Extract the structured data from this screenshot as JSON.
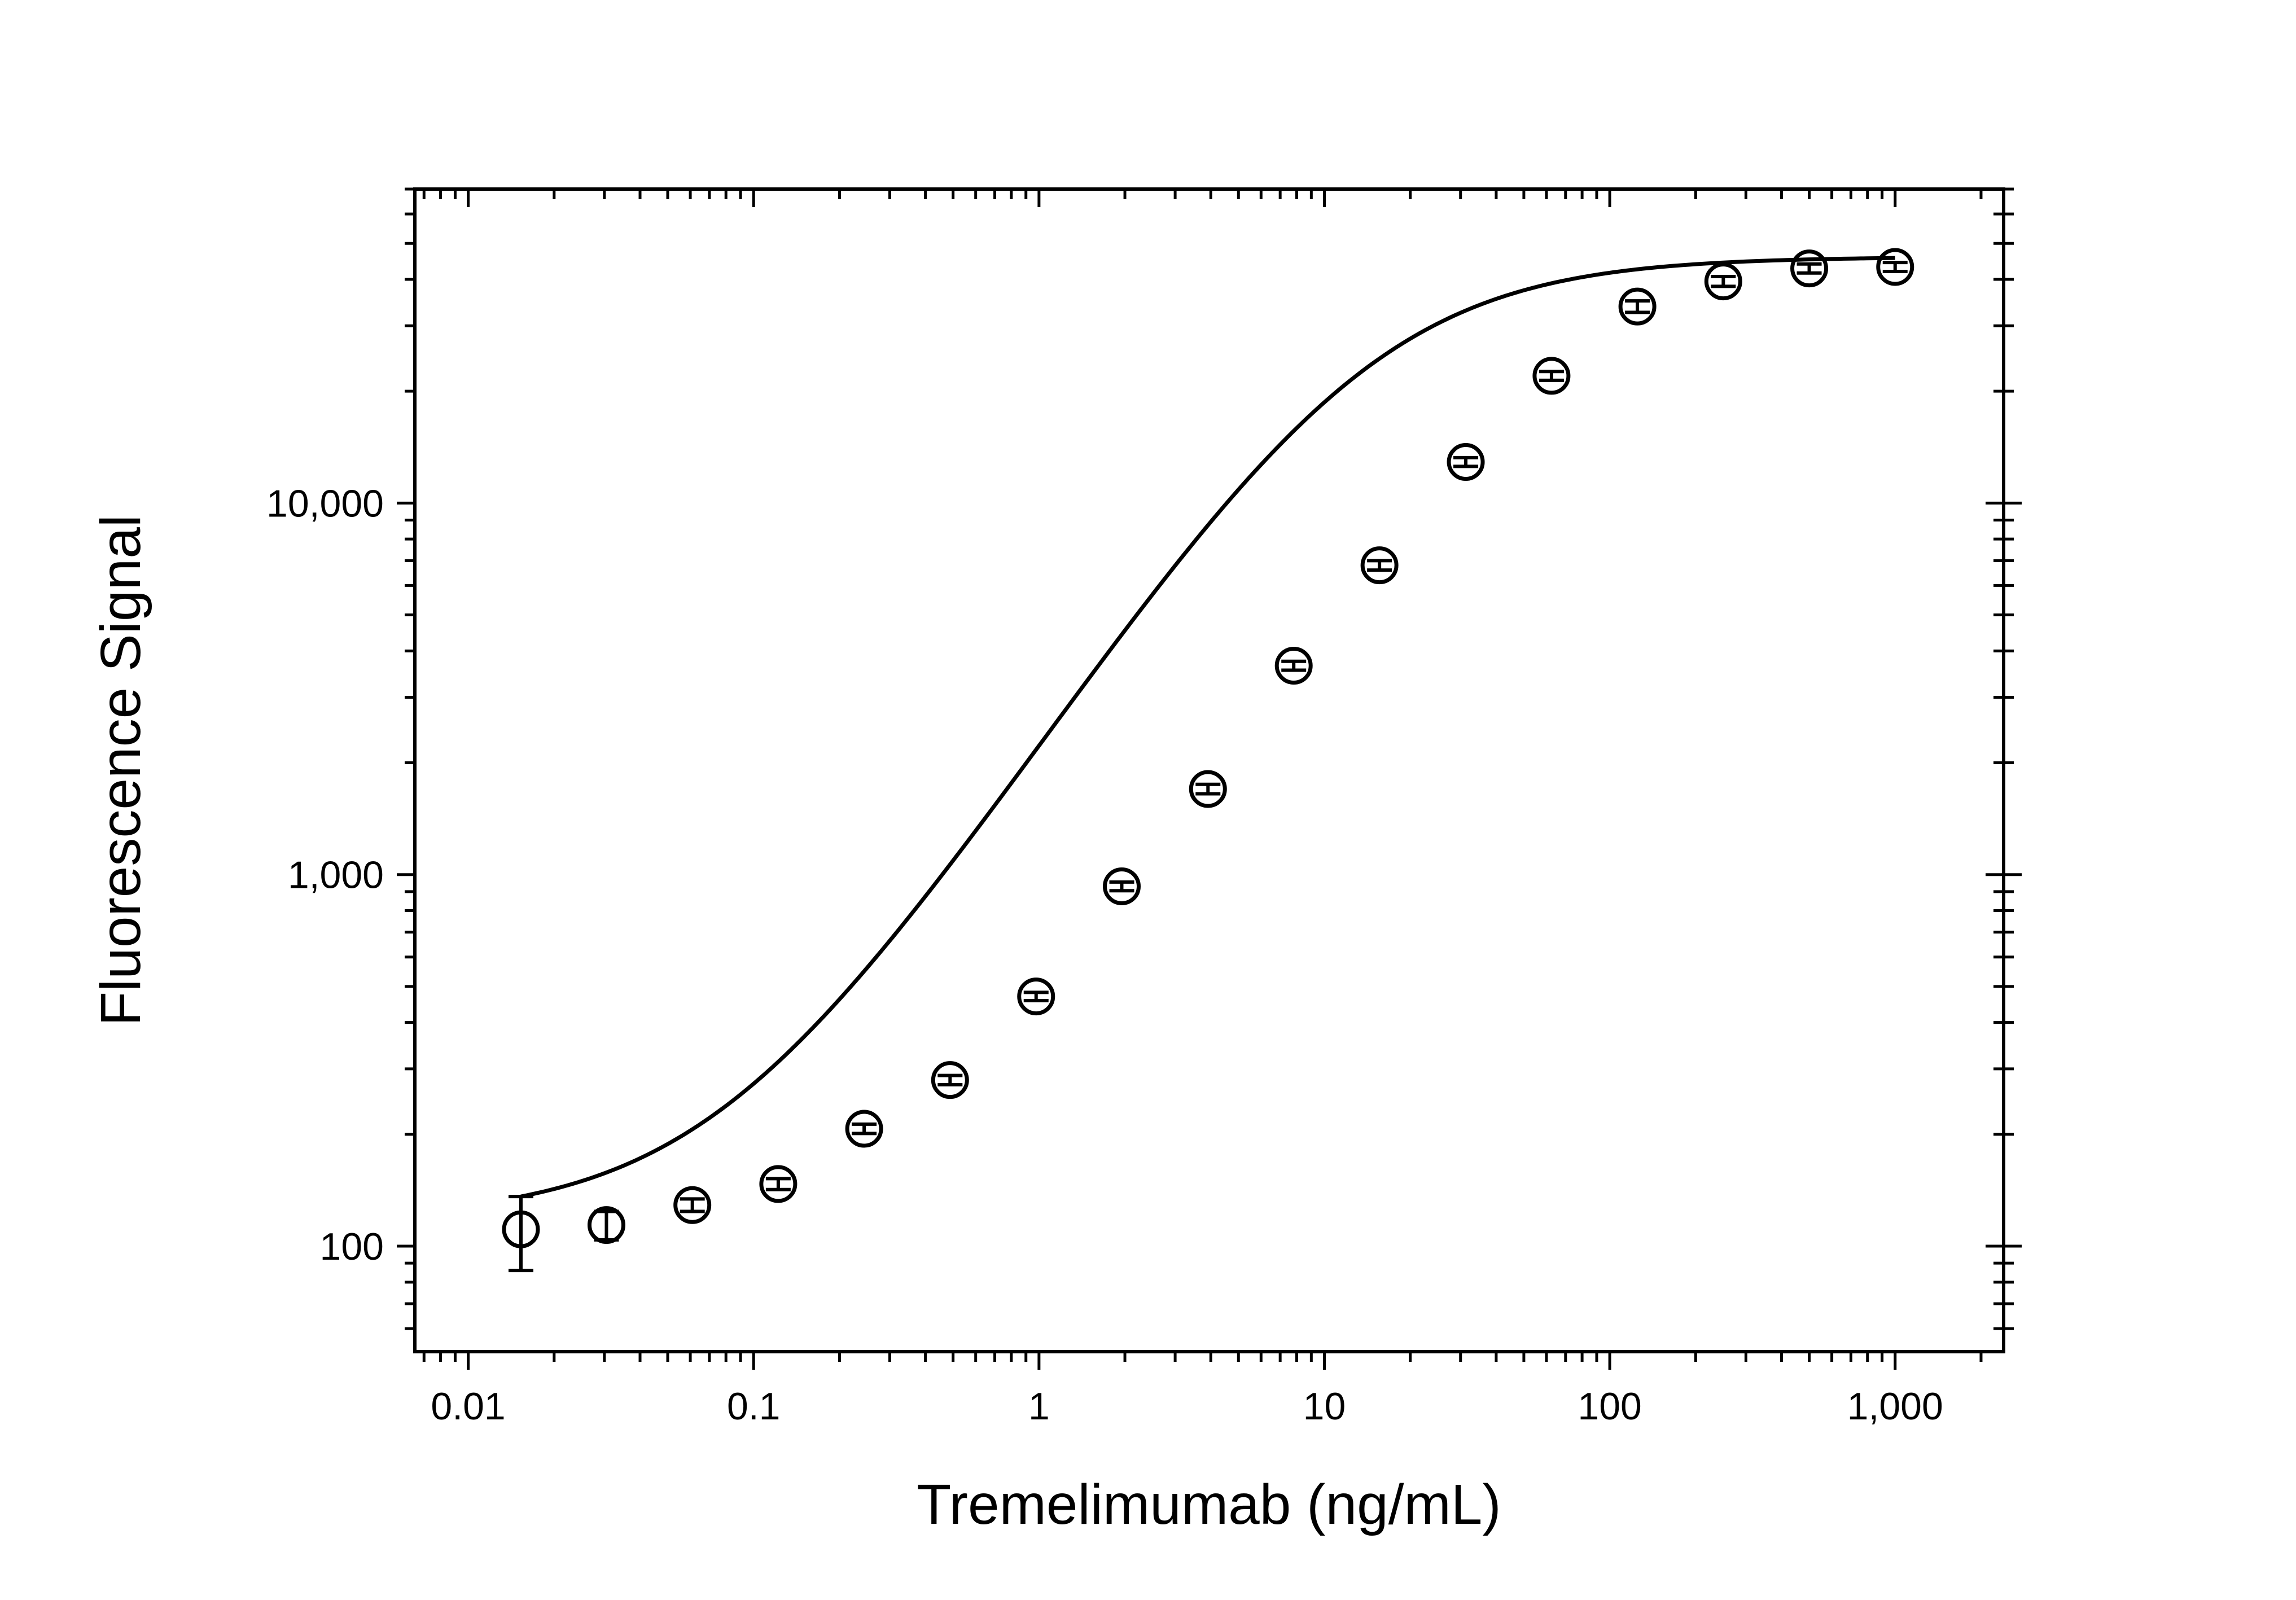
{
  "chart_data": {
    "type": "scatter",
    "title": "",
    "xlabel": "Tremelimumab (ng/mL)",
    "ylabel": "Fluorescence Signal",
    "x_scale": "log",
    "y_scale": "log",
    "xlim": [
      0.0065,
      2400
    ],
    "ylim": [
      52,
      70000
    ],
    "x_ticks": [
      {
        "value": 0.01,
        "label": "0.01"
      },
      {
        "value": 0.1,
        "label": "0.1"
      },
      {
        "value": 1,
        "label": "1"
      },
      {
        "value": 10,
        "label": "10"
      },
      {
        "value": 100,
        "label": "100"
      },
      {
        "value": 1000,
        "label": "1,000"
      }
    ],
    "y_ticks": [
      {
        "value": 100,
        "label": "100"
      },
      {
        "value": 1000,
        "label": "1,000"
      },
      {
        "value": 10000,
        "label": "10,000"
      }
    ],
    "grid": false,
    "legend": "none",
    "series": [
      {
        "marker": "open-circle",
        "points": [
          {
            "x": 0.0153,
            "y": 111,
            "err": 25
          },
          {
            "x": 0.0305,
            "y": 114,
            "err": 10
          },
          {
            "x": 0.061,
            "y": 129,
            "err": 5
          },
          {
            "x": 0.122,
            "y": 147,
            "err": 5
          },
          {
            "x": 0.244,
            "y": 207,
            "err": 6
          },
          {
            "x": 0.488,
            "y": 280,
            "err": 8
          },
          {
            "x": 0.977,
            "y": 470,
            "err": 12
          },
          {
            "x": 1.95,
            "y": 930,
            "err": 25
          },
          {
            "x": 3.91,
            "y": 1700,
            "err": 50
          },
          {
            "x": 7.81,
            "y": 3650,
            "err": 100
          },
          {
            "x": 15.6,
            "y": 6800,
            "err": 200
          },
          {
            "x": 31.3,
            "y": 12900,
            "err": 350
          },
          {
            "x": 62.5,
            "y": 22000,
            "err": 600
          },
          {
            "x": 125,
            "y": 33800,
            "err": 1200
          },
          {
            "x": 250,
            "y": 39500,
            "err": 1200
          },
          {
            "x": 500,
            "y": 42800,
            "err": 1200
          },
          {
            "x": 1000,
            "y": 43200,
            "err": 1200
          }
        ]
      }
    ],
    "fit_curve": {
      "model": "4PL",
      "bottom": 118,
      "top": 46000,
      "ec50": 14,
      "hill": 1.15,
      "x_range": [
        0.0153,
        1000
      ]
    }
  }
}
